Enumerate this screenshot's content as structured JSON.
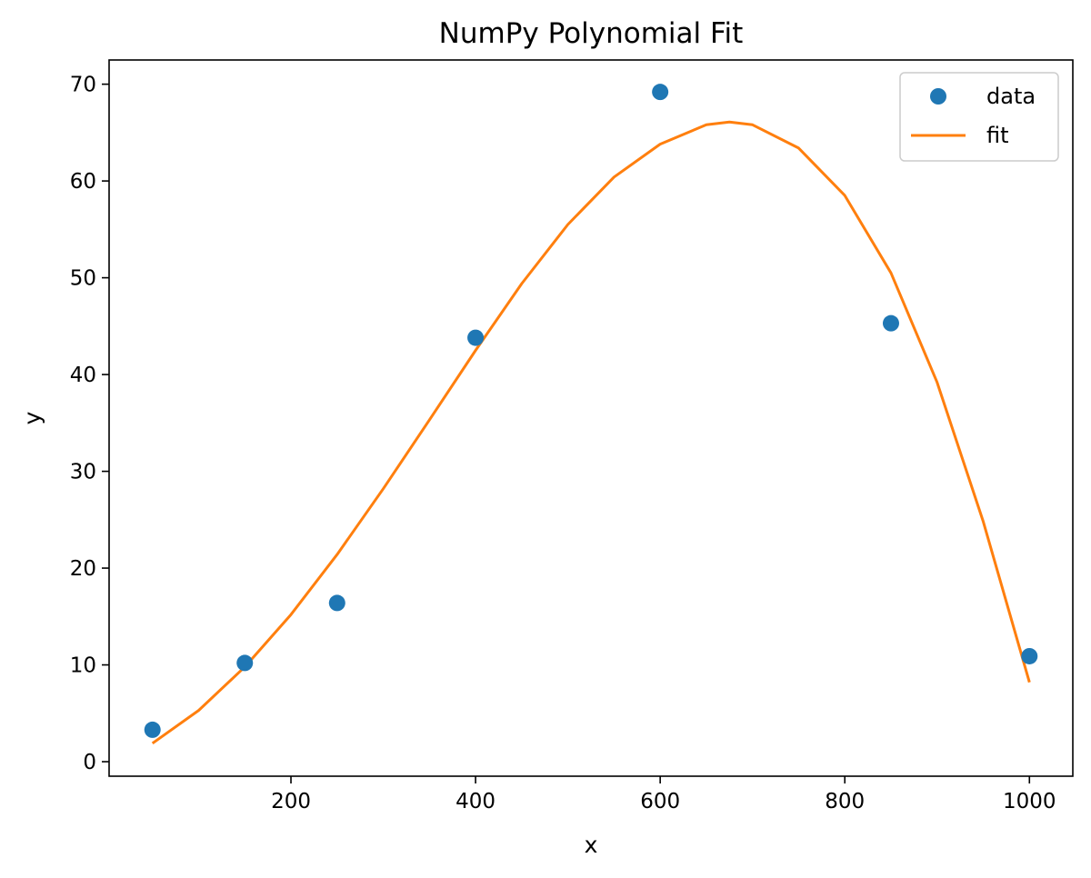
{
  "chart_data": {
    "type": "scatter",
    "title": "NumPy Polynomial Fit",
    "xlabel": "x",
    "ylabel": "y",
    "xlim": [
      3,
      1047
    ],
    "ylim": [
      -1.5,
      72.5
    ],
    "xticks": [
      200,
      400,
      600,
      800,
      1000
    ],
    "yticks": [
      0,
      10,
      20,
      30,
      40,
      50,
      60,
      70
    ],
    "grid": false,
    "legend_position": "top-right",
    "series": [
      {
        "name": "data",
        "kind": "scatter",
        "color": "#1f77b4",
        "points": [
          {
            "x": 50,
            "y": 3.3
          },
          {
            "x": 150,
            "y": 10.2
          },
          {
            "x": 250,
            "y": 16.4
          },
          {
            "x": 400,
            "y": 43.8
          },
          {
            "x": 600,
            "y": 69.2
          },
          {
            "x": 850,
            "y": 45.3
          },
          {
            "x": 1000,
            "y": 10.9
          }
        ]
      },
      {
        "name": "fit",
        "kind": "line",
        "color": "#ff7f0e",
        "points": [
          {
            "x": 50,
            "y": 1.9
          },
          {
            "x": 100,
            "y": 5.3
          },
          {
            "x": 150,
            "y": 9.8
          },
          {
            "x": 200,
            "y": 15.2
          },
          {
            "x": 250,
            "y": 21.4
          },
          {
            "x": 300,
            "y": 28.2
          },
          {
            "x": 350,
            "y": 35.3
          },
          {
            "x": 400,
            "y": 42.5
          },
          {
            "x": 450,
            "y": 49.4
          },
          {
            "x": 500,
            "y": 55.5
          },
          {
            "x": 550,
            "y": 60.4
          },
          {
            "x": 600,
            "y": 63.8
          },
          {
            "x": 650,
            "y": 65.8
          },
          {
            "x": 675,
            "y": 66.1
          },
          {
            "x": 700,
            "y": 65.8
          },
          {
            "x": 750,
            "y": 63.4
          },
          {
            "x": 800,
            "y": 58.5
          },
          {
            "x": 850,
            "y": 50.5
          },
          {
            "x": 900,
            "y": 39.2
          },
          {
            "x": 950,
            "y": 24.8
          },
          {
            "x": 1000,
            "y": 8.2
          }
        ]
      }
    ]
  }
}
